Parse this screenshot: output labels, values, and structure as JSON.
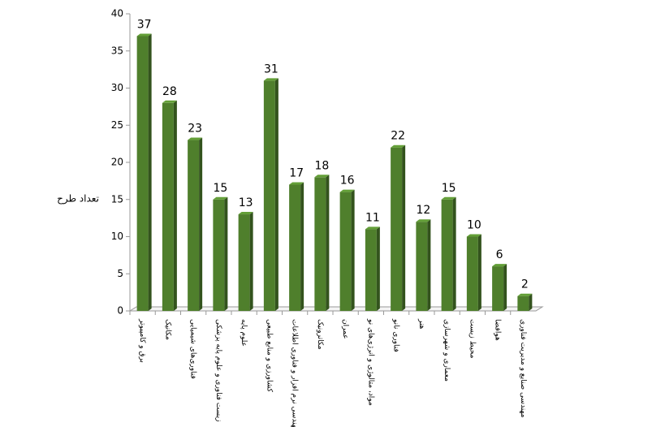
{
  "chart_data": {
    "type": "bar",
    "y_label": "تعداد طرح",
    "categories": [
      "برق و کامپیوتر",
      "مکانیک",
      "فناوری‌های شیمیایی",
      "زیست فناوری و علوم پایه پزشکی",
      "علوم پایه",
      "کشاورزی و منابع طبیعی",
      "مهندسی نرم افزار و فناوری اطلاعات",
      "مکاترونیک",
      "عمران",
      "مواد، متالوژی و انرژی‌های نو",
      "فناوری نانو",
      "هنر",
      "معماری و شهرسازی",
      "محیط زیست",
      "هوافضا",
      "مهندسی صنایع و مدیریت فناوری"
    ],
    "values": [
      37,
      28,
      23,
      15,
      13,
      31,
      17,
      18,
      16,
      11,
      22,
      12,
      15,
      10,
      6,
      2
    ],
    "color": "#4f7f2c",
    "ylim": [
      0,
      40
    ],
    "yticks": [
      0,
      5,
      10,
      15,
      20,
      25,
      30,
      35,
      40
    ]
  }
}
